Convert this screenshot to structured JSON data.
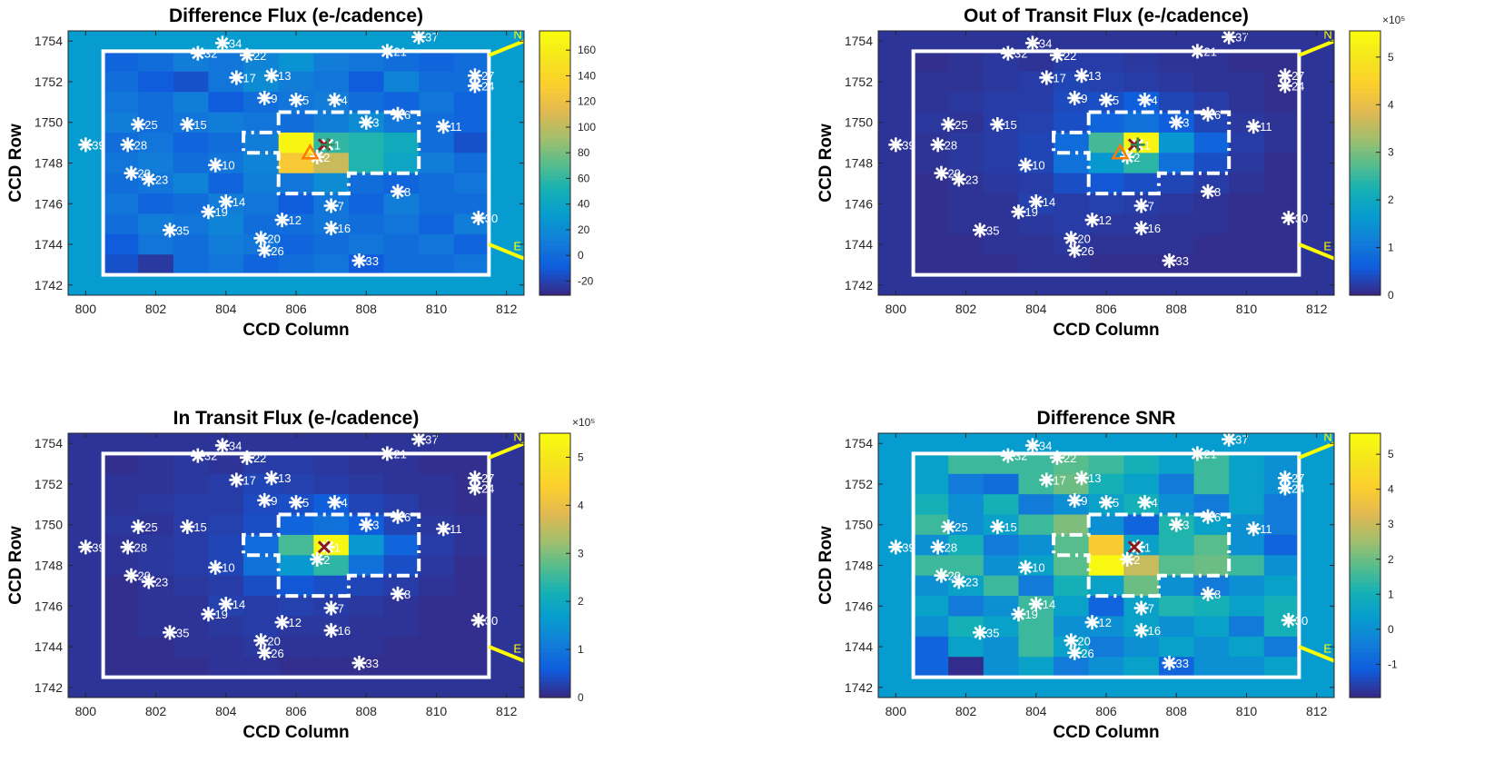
{
  "figure": {
    "panels": [
      {
        "title": "Difference Flux (e-/cadence)",
        "xlabel": "CCD Column",
        "ylabel": "CCD Row",
        "colorbar": {
          "ticks": [
            "-20",
            "0",
            "20",
            "40",
            "60",
            "80",
            "100",
            "120",
            "140",
            "160"
          ],
          "tick_values": [
            -20,
            0,
            20,
            40,
            60,
            80,
            100,
            120,
            140,
            160
          ],
          "range": [
            -31,
            175
          ],
          "exponent": ""
        },
        "bg_level": 0.3
      },
      {
        "title": "Out of Transit Flux (e-/cadence)",
        "xlabel": "CCD Column",
        "ylabel": "CCD Row",
        "colorbar": {
          "ticks": [
            "0",
            "1",
            "2",
            "3",
            "4",
            "5"
          ],
          "tick_values": [
            0,
            1,
            2,
            3,
            4,
            5
          ],
          "range": [
            0,
            5.55
          ],
          "exponent": "×10⁵"
        },
        "bg_level": 0.02
      },
      {
        "title": "In Transit Flux (e-/cadence)",
        "xlabel": "CCD Column",
        "ylabel": "CCD Row",
        "colorbar": {
          "ticks": [
            "0",
            "1",
            "2",
            "3",
            "4",
            "5"
          ],
          "tick_values": [
            0,
            1,
            2,
            3,
            4,
            5
          ],
          "range": [
            0,
            5.5
          ],
          "exponent": "×10⁵"
        },
        "bg_level": 0.02
      },
      {
        "title": "Difference SNR",
        "xlabel": "CCD Column",
        "ylabel": "CCD Row",
        "colorbar": {
          "ticks": [
            "-1",
            "0",
            "1",
            "2",
            "3",
            "4",
            "5"
          ],
          "tick_values": [
            -1,
            0,
            1,
            2,
            3,
            4,
            5
          ],
          "range": [
            -1.95,
            5.6
          ],
          "exponent": ""
        },
        "bg_level": 0.3
      }
    ],
    "direction_labels": {
      "north": "N",
      "east": "E"
    }
  },
  "chart_data": [
    {
      "type": "heatmap",
      "title": "Difference Flux (e-/cadence)",
      "xlabel": "CCD Column",
      "ylabel": "CCD Row",
      "xlim": [
        799.5,
        812.5
      ],
      "ylim": [
        1741.5,
        1754.5
      ],
      "xticks": [
        800,
        802,
        804,
        806,
        808,
        810,
        812
      ],
      "yticks": [
        1742,
        1744,
        1746,
        1748,
        1750,
        1752,
        1754
      ],
      "colormap": "parula",
      "grid": false,
      "pixel_columns": [
        801,
        802,
        803,
        804,
        805,
        806,
        807,
        808,
        809,
        810,
        811
      ],
      "pixel_rows": [
        1753,
        1752,
        1751,
        1750,
        1749,
        1748,
        1747,
        1746,
        1745,
        1744,
        1743
      ],
      "values": [
        [
          -5,
          0,
          10,
          5,
          15,
          25,
          10,
          5,
          0,
          -5,
          0
        ],
        [
          0,
          -10,
          -15,
          5,
          20,
          10,
          5,
          -10,
          15,
          0,
          0
        ],
        [
          5,
          0,
          10,
          -10,
          0,
          5,
          10,
          0,
          -5,
          5,
          -5
        ],
        [
          10,
          0,
          5,
          10,
          5,
          0,
          10,
          20,
          5,
          0,
          -5
        ],
        [
          0,
          5,
          -5,
          0,
          10,
          170,
          60,
          55,
          45,
          0,
          -15
        ],
        [
          5,
          10,
          0,
          5,
          15,
          130,
          105,
          55,
          40,
          10,
          0
        ],
        [
          0,
          5,
          15,
          -5,
          10,
          5,
          20,
          0,
          -5,
          0,
          5
        ],
        [
          5,
          -5,
          0,
          10,
          5,
          -10,
          5,
          -5,
          10,
          0,
          0
        ],
        [
          0,
          10,
          5,
          15,
          0,
          0,
          5,
          0,
          5,
          -5,
          10
        ],
        [
          -10,
          5,
          0,
          10,
          5,
          -5,
          0,
          5,
          0,
          5,
          -5
        ],
        [
          -15,
          -25,
          0,
          5,
          -5,
          0,
          5,
          -10,
          0,
          0,
          5
        ]
      ],
      "color_range": [
        -31,
        175
      ],
      "colorbar_ticks": [
        -20,
        0,
        20,
        40,
        60,
        80,
        100,
        120,
        140,
        160
      ]
    },
    {
      "type": "heatmap",
      "title": "Out of Transit Flux (e-/cadence)",
      "xlabel": "CCD Column",
      "ylabel": "CCD Row",
      "xlim": [
        799.5,
        812.5
      ],
      "ylim": [
        1741.5,
        1754.5
      ],
      "xticks": [
        800,
        802,
        804,
        806,
        808,
        810,
        812
      ],
      "yticks": [
        1742,
        1744,
        1746,
        1748,
        1750,
        1752,
        1754
      ],
      "colormap": "parula",
      "colorbar_multiplier": "×10⁵",
      "pixel_columns": [
        801,
        802,
        803,
        804,
        805,
        806,
        807,
        808,
        809,
        810,
        811
      ],
      "pixel_rows": [
        1753,
        1752,
        1751,
        1750,
        1749,
        1748,
        1747,
        1746,
        1745,
        1744,
        1743
      ],
      "values": [
        [
          0.05,
          0.1,
          0.15,
          0.1,
          0.2,
          0.2,
          0.15,
          0.1,
          0.1,
          0.05,
          0.05
        ],
        [
          0.1,
          0.1,
          0.15,
          0.2,
          0.3,
          0.25,
          0.2,
          0.15,
          0.1,
          0.1,
          0.05
        ],
        [
          0.1,
          0.15,
          0.2,
          0.2,
          0.35,
          0.4,
          0.6,
          0.3,
          0.2,
          0.1,
          0.05
        ],
        [
          0.15,
          0.1,
          0.2,
          0.25,
          0.4,
          0.7,
          0.9,
          0.6,
          0.3,
          0.15,
          0.1
        ],
        [
          0.1,
          0.15,
          0.2,
          0.3,
          0.8,
          2.6,
          5.4,
          1.6,
          0.7,
          0.2,
          0.1
        ],
        [
          0.1,
          0.15,
          0.2,
          0.3,
          0.9,
          1.6,
          2.4,
          0.9,
          0.4,
          0.15,
          0.05
        ],
        [
          0.05,
          0.1,
          0.15,
          0.2,
          0.4,
          0.5,
          0.4,
          0.3,
          0.2,
          0.1,
          0.05
        ],
        [
          0.05,
          0.1,
          0.1,
          0.25,
          0.2,
          0.25,
          0.2,
          0.15,
          0.1,
          0.05,
          0.05
        ],
        [
          0.05,
          0.1,
          0.1,
          0.15,
          0.2,
          0.15,
          0.15,
          0.1,
          0.1,
          0.05,
          0.05
        ],
        [
          0.05,
          0.05,
          0.1,
          0.1,
          0.15,
          0.1,
          0.1,
          0.1,
          0.05,
          0.05,
          0.05
        ],
        [
          0.05,
          0.05,
          0.05,
          0.1,
          0.1,
          0.05,
          0.05,
          0.05,
          0.05,
          0.05,
          0.05
        ]
      ],
      "color_range": [
        0,
        5.55
      ],
      "colorbar_ticks": [
        0,
        1,
        2,
        3,
        4,
        5
      ]
    },
    {
      "type": "heatmap",
      "title": "In Transit Flux (e-/cadence)",
      "xlabel": "CCD Column",
      "ylabel": "CCD Row",
      "xlim": [
        799.5,
        812.5
      ],
      "ylim": [
        1741.5,
        1754.5
      ],
      "xticks": [
        800,
        802,
        804,
        806,
        808,
        810,
        812
      ],
      "yticks": [
        1742,
        1744,
        1746,
        1748,
        1750,
        1752,
        1754
      ],
      "colormap": "parula",
      "colorbar_multiplier": "×10⁵",
      "pixel_columns": [
        801,
        802,
        803,
        804,
        805,
        806,
        807,
        808,
        809,
        810,
        811
      ],
      "pixel_rows": [
        1753,
        1752,
        1751,
        1750,
        1749,
        1748,
        1747,
        1746,
        1745,
        1744,
        1743
      ],
      "values": [
        [
          0.05,
          0.1,
          0.15,
          0.1,
          0.2,
          0.2,
          0.15,
          0.1,
          0.1,
          0.05,
          0.05
        ],
        [
          0.1,
          0.1,
          0.15,
          0.2,
          0.3,
          0.25,
          0.2,
          0.15,
          0.1,
          0.1,
          0.05
        ],
        [
          0.1,
          0.15,
          0.2,
          0.2,
          0.35,
          0.4,
          0.6,
          0.3,
          0.2,
          0.1,
          0.05
        ],
        [
          0.15,
          0.1,
          0.2,
          0.25,
          0.4,
          0.7,
          0.9,
          0.6,
          0.3,
          0.15,
          0.1
        ],
        [
          0.1,
          0.15,
          0.2,
          0.3,
          0.8,
          2.6,
          5.4,
          1.6,
          0.7,
          0.2,
          0.1
        ],
        [
          0.1,
          0.15,
          0.2,
          0.3,
          0.9,
          1.6,
          2.4,
          0.9,
          0.4,
          0.15,
          0.05
        ],
        [
          0.05,
          0.1,
          0.15,
          0.2,
          0.4,
          0.5,
          0.4,
          0.3,
          0.2,
          0.1,
          0.05
        ],
        [
          0.05,
          0.1,
          0.1,
          0.25,
          0.2,
          0.25,
          0.2,
          0.15,
          0.1,
          0.05,
          0.05
        ],
        [
          0.05,
          0.1,
          0.1,
          0.15,
          0.2,
          0.15,
          0.15,
          0.1,
          0.1,
          0.05,
          0.05
        ],
        [
          0.05,
          0.05,
          0.1,
          0.1,
          0.15,
          0.1,
          0.1,
          0.1,
          0.05,
          0.05,
          0.05
        ],
        [
          0.05,
          0.05,
          0.05,
          0.1,
          0.1,
          0.05,
          0.05,
          0.05,
          0.05,
          0.05,
          0.05
        ]
      ],
      "color_range": [
        0,
        5.5
      ],
      "colorbar_ticks": [
        0,
        1,
        2,
        3,
        4,
        5
      ]
    },
    {
      "type": "heatmap",
      "title": "Difference SNR",
      "xlabel": "CCD Column",
      "ylabel": "CCD Row",
      "xlim": [
        799.5,
        812.5
      ],
      "ylim": [
        1741.5,
        1754.5
      ],
      "xticks": [
        800,
        802,
        804,
        806,
        808,
        810,
        812
      ],
      "yticks": [
        1742,
        1744,
        1746,
        1748,
        1750,
        1752,
        1754
      ],
      "colormap": "parula",
      "pixel_columns": [
        801,
        802,
        803,
        804,
        805,
        806,
        807,
        808,
        809,
        810,
        811
      ],
      "pixel_rows": [
        1753,
        1752,
        1751,
        1750,
        1749,
        1748,
        1747,
        1746,
        1745,
        1744,
        1743
      ],
      "values": [
        [
          0.5,
          1.5,
          1.5,
          1.5,
          1.8,
          1.5,
          1.0,
          0.5,
          1.5,
          0.5,
          0.0
        ],
        [
          0.5,
          -0.5,
          -0.8,
          1.5,
          2.0,
          1.0,
          0.5,
          -0.5,
          1.5,
          0.5,
          0.0
        ],
        [
          1.0,
          0.0,
          1.0,
          -0.5,
          0.0,
          0.5,
          1.0,
          0.0,
          -0.5,
          0.5,
          -0.5
        ],
        [
          1.5,
          0.0,
          0.5,
          1.5,
          2.2,
          0.0,
          -1.0,
          1.2,
          0.5,
          0.0,
          -0.5
        ],
        [
          0.0,
          1.0,
          -0.5,
          0.0,
          1.8,
          4.0,
          0.5,
          1.2,
          1.8,
          0.0,
          -1.0
        ],
        [
          1.5,
          1.5,
          0.0,
          0.5,
          1.8,
          5.5,
          3.0,
          1.8,
          2.0,
          1.5,
          0.0
        ],
        [
          0.0,
          0.5,
          1.5,
          -0.5,
          1.0,
          0.5,
          2.0,
          0.0,
          -0.5,
          0.0,
          0.5
        ],
        [
          0.5,
          -0.5,
          0.0,
          1.5,
          0.5,
          -1.0,
          0.5,
          1.2,
          1.0,
          0.5,
          1.0
        ],
        [
          0.0,
          1.0,
          0.5,
          1.5,
          0.0,
          0.0,
          0.5,
          0.0,
          0.5,
          -0.5,
          1.0
        ],
        [
          -1.0,
          0.5,
          0.0,
          1.5,
          0.5,
          -0.5,
          0.0,
          0.5,
          0.0,
          0.5,
          -0.5
        ],
        [
          -1.0,
          -1.9,
          0.0,
          0.5,
          -0.5,
          0.0,
          0.5,
          -1.0,
          0.0,
          0.0,
          0.5
        ]
      ],
      "color_range": [
        -1.95,
        5.6
      ],
      "colorbar_ticks": [
        -1,
        0,
        1,
        2,
        3,
        4,
        5
      ]
    }
  ],
  "stars": [
    {
      "id": "1",
      "col": 806.9,
      "row": 1748.9
    },
    {
      "id": "2",
      "col": 806.6,
      "row": 1748.3
    },
    {
      "id": "3",
      "col": 808.0,
      "row": 1750.0
    },
    {
      "id": "4",
      "col": 807.1,
      "row": 1751.1
    },
    {
      "id": "5",
      "col": 806.0,
      "row": 1751.1
    },
    {
      "id": "6",
      "col": 808.9,
      "row": 1750.4
    },
    {
      "id": "7",
      "col": 807.0,
      "row": 1745.9
    },
    {
      "id": "8",
      "col": 808.9,
      "row": 1746.6
    },
    {
      "id": "9",
      "col": 805.1,
      "row": 1751.2
    },
    {
      "id": "10",
      "col": 803.7,
      "row": 1747.9
    },
    {
      "id": "11",
      "col": 810.2,
      "row": 1749.8
    },
    {
      "id": "12",
      "col": 805.6,
      "row": 1745.2
    },
    {
      "id": "13",
      "col": 805.3,
      "row": 1752.3
    },
    {
      "id": "14",
      "col": 804.0,
      "row": 1746.1
    },
    {
      "id": "15",
      "col": 802.9,
      "row": 1749.9
    },
    {
      "id": "16",
      "col": 807.0,
      "row": 1744.8
    },
    {
      "id": "17",
      "col": 804.3,
      "row": 1752.2
    },
    {
      "id": "19",
      "col": 803.5,
      "row": 1745.6
    },
    {
      "id": "20",
      "col": 805.0,
      "row": 1744.3
    },
    {
      "id": "21",
      "col": 808.6,
      "row": 1753.5
    },
    {
      "id": "22",
      "col": 804.6,
      "row": 1753.3
    },
    {
      "id": "23",
      "col": 801.8,
      "row": 1747.2
    },
    {
      "id": "24",
      "col": 811.1,
      "row": 1751.8
    },
    {
      "id": "25",
      "col": 801.5,
      "row": 1749.9
    },
    {
      "id": "26",
      "col": 805.1,
      "row": 1743.7
    },
    {
      "id": "27",
      "col": 811.1,
      "row": 1752.3
    },
    {
      "id": "28",
      "col": 801.2,
      "row": 1748.9
    },
    {
      "id": "29",
      "col": 801.3,
      "row": 1747.5
    },
    {
      "id": "30",
      "col": 811.2,
      "row": 1745.3
    },
    {
      "id": "32",
      "col": 803.2,
      "row": 1753.4
    },
    {
      "id": "33",
      "col": 807.8,
      "row": 1743.2
    },
    {
      "id": "34",
      "col": 803.9,
      "row": 1753.9
    },
    {
      "id": "35",
      "col": 802.4,
      "row": 1744.7
    },
    {
      "id": "37",
      "col": 809.5,
      "row": 1754.2
    },
    {
      "id": "39",
      "col": 800.0,
      "row": 1748.9
    }
  ],
  "markers": {
    "x_mark": {
      "col": 806.8,
      "row": 1748.9
    },
    "triangle": {
      "col": 806.4,
      "row": 1748.5
    },
    "plus": {
      "col": 806.9,
      "row": 1748.9
    }
  },
  "colors": {
    "outline": "#ffffff",
    "compass": "#ffff00",
    "x_mark": "#8b1a1a",
    "triangle": "#ff7a00",
    "plus": "#2e8b57"
  }
}
